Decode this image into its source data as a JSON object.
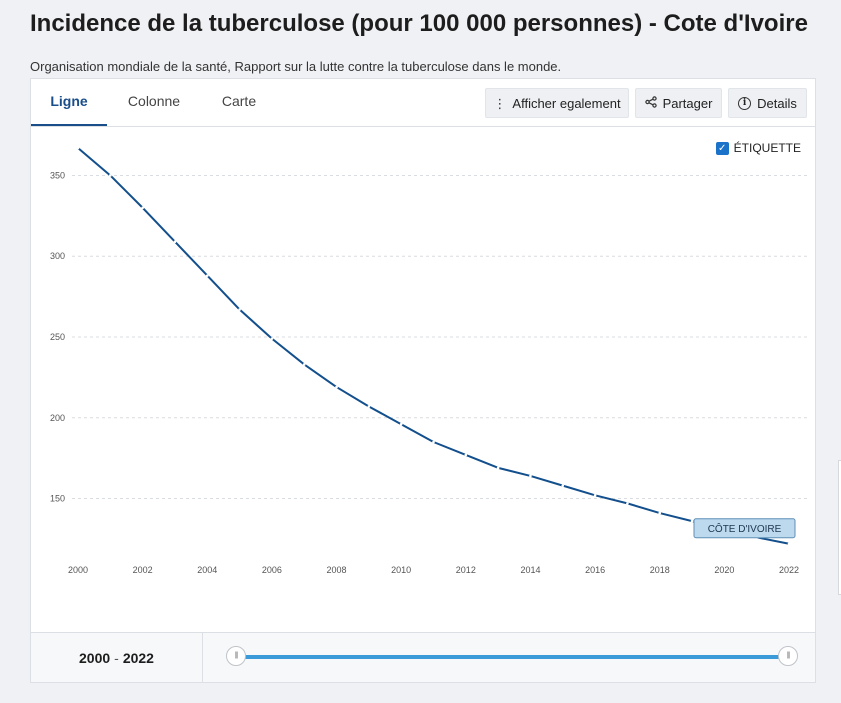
{
  "header": {
    "title": "Incidence de la tuberculose (pour 100 000 personnes) - Cote d'Ivoire",
    "subtitle": "Organisation mondiale de la santé, Rapport sur la lutte contre la tuberculose dans le monde."
  },
  "tabs": [
    {
      "label": "Ligne",
      "active": true
    },
    {
      "label": "Colonne",
      "active": false
    },
    {
      "label": "Carte",
      "active": false
    }
  ],
  "toolbar": {
    "also_show_label": "Afficher egalement",
    "share_label": "Partager",
    "details_label": "Details"
  },
  "label_toggle": {
    "label": "ÉTIQUETTE",
    "checked": true
  },
  "range": {
    "start": "2000",
    "separator": "-",
    "end": "2022"
  },
  "colors": {
    "line": "#124f8c",
    "accent": "#1a4e8a",
    "slider": "#3b9bd8",
    "label_bg": "#bcd9ee"
  },
  "chart_data": {
    "type": "line",
    "x": [
      2000,
      2001,
      2002,
      2003,
      2004,
      2005,
      2006,
      2007,
      2008,
      2009,
      2010,
      2011,
      2012,
      2013,
      2014,
      2015,
      2016,
      2017,
      2018,
      2019,
      2020,
      2021,
      2022
    ],
    "series": [
      {
        "name": "CÔTE D'IVOIRE",
        "values": [
          367,
          350,
          330,
          309,
          288,
          267,
          249,
          233,
          219,
          207,
          196,
          185,
          177,
          169,
          164,
          158,
          152,
          147,
          141,
          136,
          131,
          126,
          122
        ]
      }
    ],
    "xticks": [
      "2000",
      "2002",
      "2004",
      "2006",
      "2008",
      "2010",
      "2012",
      "2014",
      "2016",
      "2018",
      "2020",
      "2022"
    ],
    "yticks": [
      "150",
      "200",
      "250",
      "300",
      "350"
    ],
    "ylim": [
      120,
      380
    ],
    "xlim": [
      2000,
      2022
    ],
    "grid": true,
    "series_label_position": "end-of-line"
  }
}
